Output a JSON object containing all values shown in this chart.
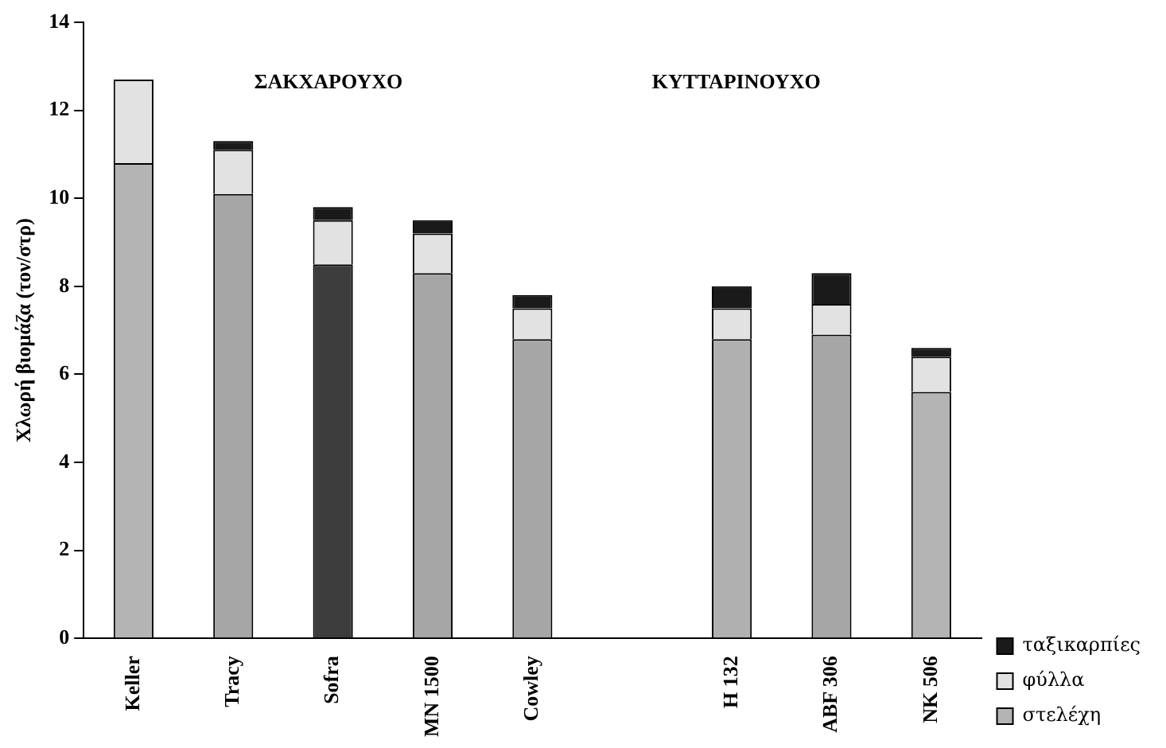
{
  "chart_data": {
    "type": "bar",
    "stacked": true,
    "ylabel": "Χλωρή βιομάζα (τον/στρ)",
    "categories": [
      "Keller",
      "Tracy",
      "Sofra",
      "MN 1500",
      "Cowley",
      null,
      "H 132",
      "ABF 306",
      "NK 506"
    ],
    "series": [
      {
        "name": "στελέχη",
        "color": "#a6a6a6",
        "colors": [
          "#b4b4b4",
          "#a6a6a6",
          "#3c3c3c",
          "#a6a6a6",
          "#a6a6a6",
          null,
          "#b0b0b0",
          "#a6a6a6",
          "#b4b4b4"
        ],
        "values": [
          10.8,
          10.1,
          8.5,
          8.3,
          6.8,
          null,
          6.8,
          6.9,
          5.6
        ]
      },
      {
        "name": "φύλλα",
        "color": "#e2e2e2",
        "values": [
          1.9,
          1.0,
          1.0,
          0.9,
          0.7,
          null,
          0.7,
          0.7,
          0.8
        ]
      },
      {
        "name": "ταξικαρπίες",
        "color": "#1a1a1a",
        "values": [
          0,
          0.2,
          0.3,
          0.3,
          0.3,
          null,
          0.5,
          0.7,
          0.2
        ]
      }
    ],
    "ylim": [
      0,
      14
    ],
    "yticks": [
      0,
      2,
      4,
      6,
      8,
      10,
      12,
      14
    ],
    "grid": false,
    "legend": "bottom right",
    "annotations": [
      "ΣΑΚΧΑΡΟΥΧΟ",
      "ΚΥΤΤΑΡΙΝΟΥΧΟ"
    ]
  }
}
